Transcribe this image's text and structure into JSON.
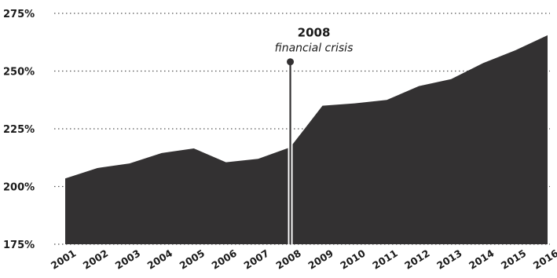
{
  "chart_data": {
    "type": "area",
    "x": [
      "2001",
      "2002",
      "2003",
      "2004",
      "2005",
      "2006",
      "2007",
      "2008",
      "2009",
      "2010",
      "2011",
      "2012",
      "2013",
      "2014",
      "2015",
      "2016"
    ],
    "values": [
      203.5,
      208,
      210,
      214.5,
      216.5,
      210.5,
      212,
      217,
      235,
      236,
      237.5,
      243.5,
      246.5,
      253.5,
      259,
      265.5
    ],
    "y_ticks": [
      "175%",
      "200%",
      "225%",
      "250%",
      "275%"
    ],
    "ylim": [
      175,
      275
    ],
    "grid": "horizontal-dotted",
    "fill_color": "#333132",
    "annotation": {
      "x": "2008",
      "title": "2008",
      "subtitle": "financial crisis",
      "marker_value": 254
    }
  }
}
